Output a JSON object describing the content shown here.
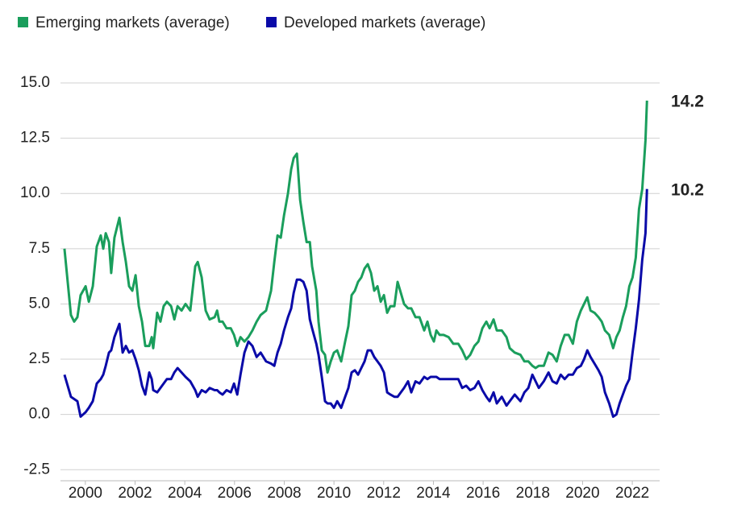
{
  "chart_data": {
    "type": "line",
    "x": [
      1999.16,
      1999.42,
      1999.55,
      1999.68,
      1999.81,
      2000.01,
      2000.14,
      2000.3,
      2000.46,
      2000.62,
      2000.72,
      2000.82,
      2000.95,
      2001.04,
      2001.17,
      2001.37,
      2001.5,
      2001.63,
      2001.76,
      2001.89,
      2002.02,
      2002.15,
      2002.28,
      2002.41,
      2002.57,
      2002.67,
      2002.73,
      2002.89,
      2003.02,
      2003.15,
      2003.28,
      2003.45,
      2003.58,
      2003.71,
      2003.87,
      2004.03,
      2004.22,
      2004.42,
      2004.52,
      2004.68,
      2004.84,
      2005.0,
      2005.2,
      2005.3,
      2005.39,
      2005.52,
      2005.68,
      2005.85,
      2005.98,
      2006.11,
      2006.24,
      2006.4,
      2006.56,
      2006.72,
      2006.89,
      2007.05,
      2007.27,
      2007.47,
      2007.6,
      2007.73,
      2007.86,
      2007.99,
      2008.15,
      2008.28,
      2008.38,
      2008.51,
      2008.64,
      2008.77,
      2008.9,
      2009.03,
      2009.12,
      2009.29,
      2009.38,
      2009.51,
      2009.64,
      2009.74,
      2009.87,
      2010.0,
      2010.13,
      2010.29,
      2010.45,
      2010.58,
      2010.71,
      2010.84,
      2010.97,
      2011.1,
      2011.23,
      2011.36,
      2011.49,
      2011.62,
      2011.75,
      2011.88,
      2012.01,
      2012.14,
      2012.27,
      2012.43,
      2012.56,
      2012.69,
      2012.82,
      2012.98,
      2013.11,
      2013.28,
      2013.44,
      2013.63,
      2013.76,
      2013.89,
      2014.02,
      2014.12,
      2014.25,
      2014.41,
      2014.61,
      2014.8,
      2015.0,
      2015.16,
      2015.32,
      2015.48,
      2015.65,
      2015.81,
      2015.97,
      2016.13,
      2016.26,
      2016.42,
      2016.55,
      2016.75,
      2016.94,
      2017.07,
      2017.27,
      2017.5,
      2017.66,
      2017.82,
      2017.98,
      2018.11,
      2018.24,
      2018.44,
      2018.63,
      2018.79,
      2018.96,
      2019.12,
      2019.28,
      2019.44,
      2019.61,
      2019.77,
      2019.93,
      2020.06,
      2020.19,
      2020.32,
      2020.48,
      2020.64,
      2020.77,
      2020.9,
      2021.07,
      2021.23,
      2021.36,
      2021.49,
      2021.62,
      2021.75,
      2021.88,
      2022.01,
      2022.14,
      2022.27,
      2022.4,
      2022.53,
      2022.59
    ],
    "series": [
      {
        "name": "Emerging markets (average)",
        "color": "#1a9e5c",
        "last_label": "14.2",
        "values": [
          7.5,
          4.5,
          4.2,
          4.4,
          5.4,
          5.8,
          5.1,
          5.8,
          7.6,
          8.1,
          7.5,
          8.2,
          7.8,
          6.4,
          8.0,
          8.9,
          7.8,
          6.9,
          5.8,
          5.6,
          6.3,
          4.9,
          4.2,
          3.1,
          3.1,
          3.5,
          3.0,
          4.6,
          4.2,
          4.9,
          5.1,
          4.9,
          4.3,
          4.9,
          4.7,
          5.0,
          4.7,
          6.7,
          6.9,
          6.2,
          4.7,
          4.3,
          4.4,
          4.7,
          4.2,
          4.2,
          3.9,
          3.9,
          3.6,
          3.1,
          3.5,
          3.3,
          3.5,
          3.8,
          4.2,
          4.5,
          4.7,
          5.6,
          6.9,
          8.1,
          8.0,
          9.0,
          10.0,
          11.1,
          11.6,
          11.8,
          9.7,
          8.7,
          7.8,
          7.8,
          6.7,
          5.6,
          4.2,
          2.9,
          2.7,
          1.9,
          2.4,
          2.8,
          2.9,
          2.4,
          3.3,
          4.0,
          5.4,
          5.6,
          6.0,
          6.2,
          6.6,
          6.8,
          6.4,
          5.6,
          5.8,
          5.1,
          5.4,
          4.6,
          4.9,
          4.9,
          6.0,
          5.5,
          5.0,
          4.8,
          4.8,
          4.4,
          4.4,
          3.8,
          4.2,
          3.6,
          3.3,
          3.8,
          3.6,
          3.6,
          3.5,
          3.2,
          3.2,
          2.9,
          2.5,
          2.7,
          3.1,
          3.3,
          3.9,
          4.2,
          3.9,
          4.3,
          3.8,
          3.8,
          3.5,
          3.0,
          2.8,
          2.7,
          2.4,
          2.4,
          2.2,
          2.1,
          2.2,
          2.2,
          2.8,
          2.7,
          2.4,
          3.1,
          3.6,
          3.6,
          3.2,
          4.2,
          4.7,
          5.0,
          5.3,
          4.7,
          4.6,
          4.4,
          4.2,
          3.8,
          3.6,
          3.0,
          3.5,
          3.8,
          4.4,
          4.9,
          5.8,
          6.2,
          7.1,
          9.3,
          10.2,
          12.4,
          14.2
        ]
      },
      {
        "name": "Developed markets (average)",
        "color": "#0a0aa8",
        "last_label": "10.2",
        "values": [
          1.8,
          0.8,
          0.7,
          0.6,
          -0.1,
          0.1,
          0.3,
          0.6,
          1.4,
          1.6,
          1.8,
          2.2,
          2.8,
          2.9,
          3.5,
          4.1,
          2.8,
          3.1,
          2.8,
          2.9,
          2.5,
          2.0,
          1.3,
          0.9,
          1.9,
          1.6,
          1.1,
          1.0,
          1.2,
          1.4,
          1.6,
          1.6,
          1.9,
          2.1,
          1.9,
          1.7,
          1.5,
          1.1,
          0.8,
          1.1,
          1.0,
          1.2,
          1.1,
          1.1,
          1.0,
          0.9,
          1.1,
          1.0,
          1.4,
          0.9,
          1.8,
          2.8,
          3.3,
          3.1,
          2.6,
          2.8,
          2.4,
          2.3,
          2.2,
          2.8,
          3.2,
          3.8,
          4.4,
          4.8,
          5.5,
          6.1,
          6.1,
          6.0,
          5.6,
          4.3,
          3.9,
          3.2,
          2.7,
          1.7,
          0.6,
          0.5,
          0.5,
          0.3,
          0.6,
          0.3,
          0.8,
          1.2,
          1.9,
          2.0,
          1.8,
          2.1,
          2.4,
          2.9,
          2.9,
          2.6,
          2.4,
          2.2,
          1.9,
          1.0,
          0.9,
          0.8,
          0.8,
          1.0,
          1.2,
          1.5,
          1.0,
          1.5,
          1.4,
          1.7,
          1.6,
          1.7,
          1.7,
          1.7,
          1.6,
          1.6,
          1.6,
          1.6,
          1.6,
          1.2,
          1.3,
          1.1,
          1.2,
          1.5,
          1.1,
          0.8,
          0.6,
          1.0,
          0.5,
          0.8,
          0.4,
          0.6,
          0.9,
          0.6,
          1.0,
          1.2,
          1.8,
          1.5,
          1.2,
          1.5,
          1.9,
          1.5,
          1.4,
          1.8,
          1.6,
          1.8,
          1.8,
          2.1,
          2.2,
          2.5,
          2.9,
          2.6,
          2.3,
          2.0,
          1.7,
          1.0,
          0.5,
          -0.1,
          0.0,
          0.5,
          0.9,
          1.3,
          1.6,
          2.8,
          3.9,
          5.2,
          7.0,
          8.2,
          10.2
        ]
      }
    ],
    "xlim": [
      1999,
      2023.1
    ],
    "xticks": [
      2000,
      2002,
      2004,
      2006,
      2008,
      2010,
      2012,
      2014,
      2016,
      2018,
      2020,
      2022
    ],
    "ylim": [
      -3,
      15
    ],
    "yticks": [
      {
        "value": -2.5,
        "label": "-2.5"
      },
      {
        "value": 0,
        "label": "0.0"
      },
      {
        "value": 2.5,
        "label": "2.5"
      },
      {
        "value": 5,
        "label": "5.0"
      },
      {
        "value": 7.5,
        "label": "7.5"
      },
      {
        "value": 10,
        "label": "10.0"
      },
      {
        "value": 12.5,
        "label": "12.5"
      },
      {
        "value": 15,
        "label": "15.0"
      }
    ],
    "grid": true,
    "legend": "top-left"
  }
}
